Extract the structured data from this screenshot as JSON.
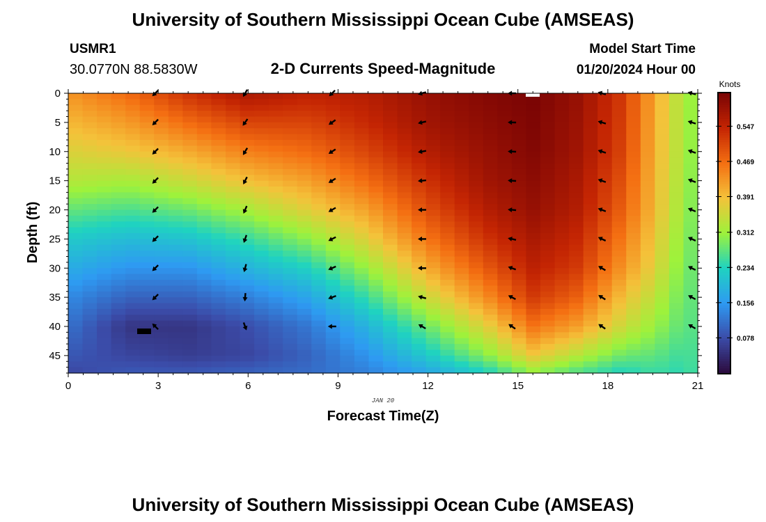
{
  "header": {
    "title": "University of Southern Mississippi Ocean Cube (AMSEAS)",
    "station": "USMR1",
    "coords": "30.0770N  88.5830W",
    "subtitle": "2-D Currents Speed-Magnitude",
    "model_label": "Model Start Time",
    "model_time": "01/20/2024 Hour 00"
  },
  "footer": {
    "title": "University of Southern Mississippi Ocean Cube (AMSEAS)"
  },
  "chart_data": {
    "type": "heatmap",
    "title": "2-D Currents Speed-Magnitude",
    "xlabel": "Forecast Time(Z)",
    "ylabel": "Depth (ft)",
    "date_label": "JAN 20",
    "x_ticks": [
      0,
      3,
      6,
      9,
      12,
      15,
      18,
      21
    ],
    "y_ticks": [
      0,
      5,
      10,
      15,
      20,
      25,
      30,
      35,
      40,
      45
    ],
    "xlim": [
      0,
      21
    ],
    "ylim": [
      0,
      48
    ],
    "colorbar": {
      "title": "Knots",
      "range": [
        0.0,
        0.62
      ],
      "ticks": [
        "0.078",
        "0.156",
        "0.234",
        "0.312",
        "0.391",
        "0.469",
        "0.547"
      ],
      "colors": [
        "#2c0b3d",
        "#3b4ca9",
        "#2e9af2",
        "#1fd3c0",
        "#9ef23b",
        "#f4c23a",
        "#f46f12",
        "#c42503",
        "#7a0404"
      ]
    },
    "arrow_times": [
      2.9,
      5.9,
      8.8,
      11.8,
      14.8,
      17.8,
      20.8
    ],
    "arrow_depths": [
      0,
      5,
      10,
      15,
      20,
      25,
      30,
      35,
      40
    ],
    "speed_profiles": [
      {
        "time": 0.0,
        "depths": [
          0,
          15,
          25,
          35,
          45,
          48
        ],
        "speeds": [
          0.43,
          0.33,
          0.22,
          0.14,
          0.09,
          0.07
        ]
      },
      {
        "time": 2.0,
        "depths": [
          0,
          10,
          15,
          20,
          25,
          30,
          35,
          40,
          45,
          48
        ],
        "speeds": [
          0.47,
          0.38,
          0.32,
          0.26,
          0.2,
          0.15,
          0.1,
          0.05,
          0.07,
          0.09
        ]
      },
      {
        "time": 4.0,
        "depths": [
          0,
          5,
          10,
          15,
          20,
          25,
          30,
          35,
          40,
          45,
          48
        ],
        "speeds": [
          0.53,
          0.47,
          0.41,
          0.35,
          0.28,
          0.21,
          0.15,
          0.1,
          0.05,
          0.06,
          0.09
        ]
      },
      {
        "time": 6.0,
        "depths": [
          0,
          5,
          10,
          15,
          20,
          25,
          30,
          35,
          40,
          45,
          48
        ],
        "speeds": [
          0.57,
          0.51,
          0.45,
          0.39,
          0.32,
          0.25,
          0.19,
          0.13,
          0.08,
          0.07,
          0.1
        ]
      },
      {
        "time": 8.0,
        "depths": [
          0,
          5,
          10,
          15,
          20,
          25,
          30,
          35,
          40,
          45,
          48
        ],
        "speeds": [
          0.55,
          0.51,
          0.47,
          0.42,
          0.37,
          0.3,
          0.23,
          0.17,
          0.12,
          0.1,
          0.11
        ]
      },
      {
        "time": 10.0,
        "depths": [
          0,
          5,
          10,
          15,
          20,
          25,
          30,
          35,
          40,
          45,
          48
        ],
        "speeds": [
          0.56,
          0.54,
          0.51,
          0.47,
          0.42,
          0.37,
          0.31,
          0.25,
          0.19,
          0.15,
          0.13
        ]
      },
      {
        "time": 12.0,
        "depths": [
          0,
          5,
          10,
          15,
          20,
          25,
          30,
          35,
          40,
          45,
          48
        ],
        "speeds": [
          0.59,
          0.58,
          0.56,
          0.53,
          0.5,
          0.46,
          0.41,
          0.35,
          0.28,
          0.22,
          0.17
        ]
      },
      {
        "time": 14.0,
        "depths": [
          0,
          5,
          10,
          15,
          20,
          25,
          30,
          35,
          40,
          45,
          48
        ],
        "speeds": [
          0.61,
          0.6,
          0.59,
          0.58,
          0.56,
          0.53,
          0.49,
          0.44,
          0.37,
          0.3,
          0.23
        ]
      },
      {
        "time": 15.5,
        "depths": [
          0,
          10,
          20,
          30,
          35,
          40,
          45,
          48
        ],
        "speeds": [
          0.62,
          0.61,
          0.59,
          0.55,
          0.52,
          0.46,
          0.38,
          0.3
        ]
      },
      {
        "time": 17.0,
        "depths": [
          0,
          10,
          20,
          30,
          35,
          40,
          45,
          48
        ],
        "speeds": [
          0.59,
          0.58,
          0.56,
          0.52,
          0.48,
          0.42,
          0.33,
          0.26
        ]
      },
      {
        "time": 18.5,
        "depths": [
          0,
          10,
          20,
          30,
          40,
          45,
          48
        ],
        "speeds": [
          0.52,
          0.51,
          0.48,
          0.43,
          0.35,
          0.28,
          0.23
        ]
      },
      {
        "time": 19.5,
        "depths": [
          0,
          10,
          20,
          30,
          40,
          48
        ],
        "speeds": [
          0.42,
          0.41,
          0.4,
          0.37,
          0.31,
          0.25
        ]
      },
      {
        "time": 20.5,
        "depths": [
          0,
          10,
          20,
          30,
          40,
          48
        ],
        "speeds": [
          0.32,
          0.32,
          0.31,
          0.29,
          0.27,
          0.24
        ]
      },
      {
        "time": 21.0,
        "depths": [
          0,
          48
        ],
        "speeds": [
          0.3,
          0.26
        ]
      }
    ],
    "arrow_angles": [
      {
        "time": 2.9,
        "depths": [
          0,
          35,
          40
        ],
        "angles": [
          135,
          135,
          225
        ]
      },
      {
        "time": 5.9,
        "depths": [
          0,
          5,
          30,
          35,
          40
        ],
        "angles": [
          120,
          125,
          105,
          95,
          70
        ]
      },
      {
        "time": 8.8,
        "depths": [
          0,
          5,
          20,
          35,
          40
        ],
        "angles": [
          135,
          145,
          150,
          160,
          180
        ]
      },
      {
        "time": 11.8,
        "depths": [
          0,
          10,
          20,
          30,
          40
        ],
        "angles": [
          165,
          170,
          180,
          180,
          210
        ]
      },
      {
        "time": 14.8,
        "depths": [
          0,
          20,
          30,
          40
        ],
        "angles": [
          180,
          185,
          200,
          215
        ]
      },
      {
        "time": 17.8,
        "depths": [
          0,
          20,
          30,
          40
        ],
        "angles": [
          195,
          200,
          210,
          215
        ]
      },
      {
        "time": 20.8,
        "depths": [
          0,
          40
        ],
        "angles": [
          195,
          210
        ]
      }
    ]
  }
}
